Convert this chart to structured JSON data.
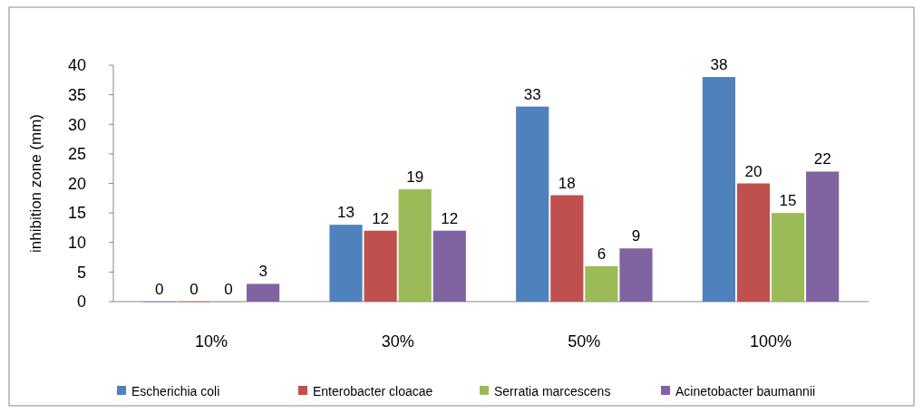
{
  "chart_data": {
    "type": "bar",
    "ylabel": "inhibition zone (mm)",
    "categories": [
      "10%",
      "30%",
      "50%",
      "100%"
    ],
    "series": [
      {
        "name": "Escherichia coli",
        "color": "#4f81bd",
        "values": [
          0,
          13,
          33,
          38
        ]
      },
      {
        "name": "Enterobacter cloacae",
        "color": "#c0504d",
        "values": [
          0,
          12,
          18,
          20
        ]
      },
      {
        "name": "Serratia marcescens",
        "color": "#9bbb59",
        "values": [
          0,
          19,
          6,
          15
        ]
      },
      {
        "name": "Acinetobacter baumannii",
        "color": "#8064a2",
        "values": [
          3,
          12,
          9,
          22
        ]
      }
    ],
    "ylim": [
      0,
      40
    ],
    "yticks": [
      0,
      5,
      10,
      15,
      20,
      25,
      30,
      35,
      40
    ],
    "data_labels": true,
    "legend": "bottom",
    "grid": false
  }
}
